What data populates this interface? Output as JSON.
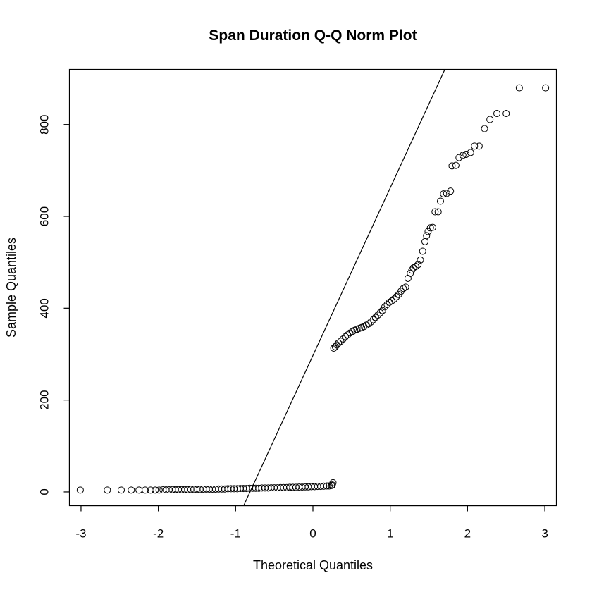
{
  "chart_data": {
    "type": "scatter",
    "title": "Span Duration Q-Q Norm Plot",
    "xlabel": "Theoretical Quantiles",
    "ylabel": "Sample Quantiles",
    "xlim": [
      -3.15,
      3.15
    ],
    "ylim": [
      -30,
      920
    ],
    "xticks": [
      -3,
      -2,
      -1,
      0,
      1,
      2,
      3
    ],
    "yticks": [
      0,
      200,
      400,
      600,
      800
    ],
    "grid": false,
    "legend": "none",
    "reference_line": {
      "intercept": 297,
      "slope": 365
    },
    "series": [
      {
        "lower_cluster": [
          [
            -3.01,
            4
          ],
          [
            -2.66,
            4
          ],
          [
            -2.48,
            4
          ],
          [
            -2.35,
            4
          ],
          [
            -2.25,
            4
          ],
          [
            -2.17,
            4
          ],
          [
            -2.1,
            4
          ],
          [
            -2.04,
            4
          ],
          [
            -1.99,
            4
          ],
          [
            -1.94,
            4.5
          ],
          [
            -1.9,
            4.5
          ],
          [
            -1.86,
            4.5
          ],
          [
            -1.82,
            5
          ],
          [
            -1.78,
            5
          ],
          [
            -1.74,
            5
          ],
          [
            -1.7,
            5
          ],
          [
            -1.66,
            5
          ],
          [
            -1.62,
            5
          ],
          [
            -1.58,
            5.5
          ],
          [
            -1.54,
            5.5
          ],
          [
            -1.5,
            5.5
          ],
          [
            -1.46,
            5.5
          ],
          [
            -1.42,
            6
          ],
          [
            -1.38,
            6
          ],
          [
            -1.34,
            6
          ],
          [
            -1.3,
            6
          ],
          [
            -1.26,
            6
          ],
          [
            -1.22,
            6.5
          ],
          [
            -1.18,
            6.5
          ],
          [
            -1.14,
            6.5
          ],
          [
            -1.1,
            7
          ],
          [
            -1.06,
            7
          ],
          [
            -1.02,
            7
          ],
          [
            -0.98,
            7
          ],
          [
            -0.94,
            7.5
          ],
          [
            -0.9,
            7.5
          ],
          [
            -0.86,
            7.5
          ],
          [
            -0.82,
            8
          ],
          [
            -0.78,
            8
          ],
          [
            -0.74,
            8
          ],
          [
            -0.7,
            8
          ],
          [
            -0.66,
            8.5
          ],
          [
            -0.62,
            8.5
          ],
          [
            -0.58,
            8.5
          ],
          [
            -0.54,
            9
          ],
          [
            -0.5,
            9
          ],
          [
            -0.46,
            9
          ],
          [
            -0.42,
            9.5
          ],
          [
            -0.38,
            9.5
          ],
          [
            -0.34,
            9.5
          ],
          [
            -0.3,
            10
          ],
          [
            -0.26,
            10
          ],
          [
            -0.22,
            10
          ],
          [
            -0.18,
            10.5
          ],
          [
            -0.14,
            10.5
          ],
          [
            -0.1,
            11
          ],
          [
            -0.06,
            11
          ],
          [
            -0.02,
            11.5
          ],
          [
            0.02,
            11.5
          ],
          [
            0.06,
            12
          ],
          [
            0.1,
            12
          ],
          [
            0.14,
            12.5
          ],
          [
            0.18,
            13
          ],
          [
            0.21,
            13
          ],
          [
            0.24,
            14
          ],
          [
            0.25,
            15
          ],
          [
            0.26,
            20
          ]
        ],
        "upper_cluster": [
          [
            0.27,
            313
          ],
          [
            0.29,
            316
          ],
          [
            0.31,
            320
          ],
          [
            0.33,
            324
          ],
          [
            0.36,
            328
          ],
          [
            0.39,
            333
          ],
          [
            0.42,
            338
          ],
          [
            0.45,
            342
          ],
          [
            0.48,
            346
          ],
          [
            0.51,
            349
          ],
          [
            0.54,
            352
          ],
          [
            0.57,
            354
          ],
          [
            0.6,
            356
          ],
          [
            0.63,
            358
          ],
          [
            0.66,
            360
          ],
          [
            0.69,
            363
          ],
          [
            0.72,
            366
          ],
          [
            0.75,
            370
          ],
          [
            0.78,
            375
          ],
          [
            0.81,
            380
          ],
          [
            0.84,
            385
          ],
          [
            0.87,
            390
          ],
          [
            0.9,
            395
          ],
          [
            0.93,
            403
          ],
          [
            0.96,
            408
          ],
          [
            0.99,
            413
          ],
          [
            1.02,
            416
          ],
          [
            1.05,
            420
          ],
          [
            1.08,
            425
          ],
          [
            1.11,
            430
          ],
          [
            1.14,
            437
          ],
          [
            1.17,
            443
          ],
          [
            1.2,
            446
          ],
          [
            1.23,
            465
          ],
          [
            1.26,
            476
          ],
          [
            1.28,
            483
          ],
          [
            1.3,
            488
          ],
          [
            1.33,
            491
          ],
          [
            1.36,
            495
          ],
          [
            1.39,
            505
          ],
          [
            1.42,
            524
          ],
          [
            1.45,
            545
          ],
          [
            1.47,
            558
          ],
          [
            1.49,
            567
          ],
          [
            1.52,
            575
          ],
          [
            1.55,
            576
          ],
          [
            1.58,
            610
          ],
          [
            1.62,
            610
          ],
          [
            1.65,
            633
          ],
          [
            1.69,
            649
          ],
          [
            1.73,
            650
          ],
          [
            1.78,
            655
          ],
          [
            1.8,
            710
          ],
          [
            1.85,
            711
          ],
          [
            1.89,
            728
          ],
          [
            1.94,
            733
          ],
          [
            1.98,
            735
          ],
          [
            2.04,
            739
          ],
          [
            2.09,
            753
          ],
          [
            2.15,
            753
          ],
          [
            2.22,
            791
          ],
          [
            2.29,
            811
          ],
          [
            2.38,
            824
          ],
          [
            2.5,
            824
          ],
          [
            2.67,
            880
          ],
          [
            3.01,
            880
          ]
        ]
      }
    ]
  }
}
